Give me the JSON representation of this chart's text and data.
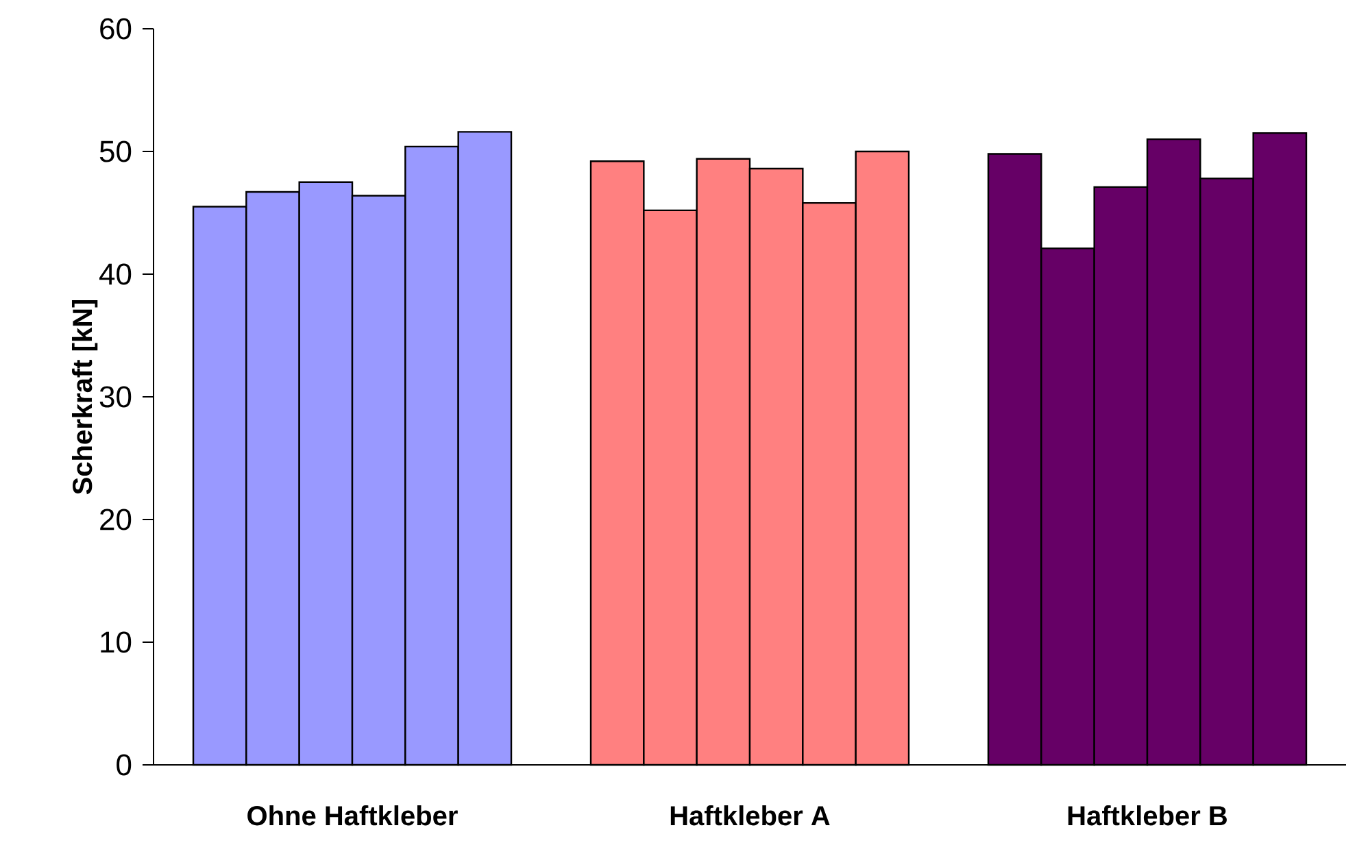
{
  "chart_data": {
    "type": "bar",
    "ylabel": "Scherkraft [kN]",
    "categories": [
      "Ohne Haftkleber",
      "Haftkleber A",
      "Haftkleber B"
    ],
    "ylim": [
      0,
      60
    ],
    "yticks": [
      0,
      10,
      20,
      30,
      40,
      50,
      60
    ],
    "series": [
      {
        "colors": [
          "#9999ff",
          "#ff8080",
          "#660066"
        ],
        "values": [
          45.5,
          49.2,
          49.8
        ]
      },
      {
        "colors": [
          "#9999ff",
          "#ff8080",
          "#660066"
        ],
        "values": [
          46.7,
          45.2,
          42.1
        ]
      },
      {
        "colors": [
          "#9999ff",
          "#ff8080",
          "#660066"
        ],
        "values": [
          47.5,
          49.4,
          47.1
        ]
      },
      {
        "colors": [
          "#9999ff",
          "#ff8080",
          "#660066"
        ],
        "values": [
          46.4,
          48.6,
          51.0
        ]
      },
      {
        "colors": [
          "#9999ff",
          "#ff8080",
          "#660066"
        ],
        "values": [
          50.4,
          45.8,
          47.8
        ]
      },
      {
        "colors": [
          "#9999ff",
          "#ff8080",
          "#660066"
        ],
        "values": [
          51.6,
          50.0,
          51.5
        ]
      }
    ]
  }
}
